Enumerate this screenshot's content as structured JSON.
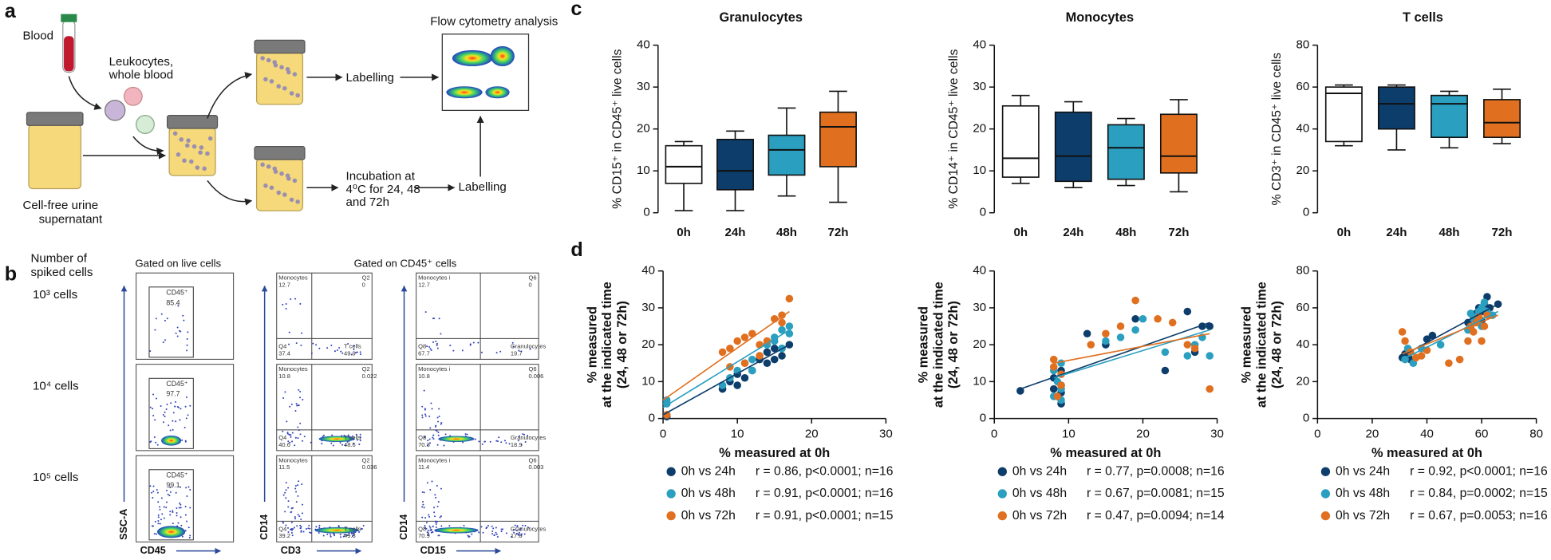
{
  "figure": {
    "labels": [
      "a",
      "b",
      "c",
      "d"
    ],
    "a": {
      "blood": "Blood",
      "leukocytes": [
        "Leukocytes,",
        "whole blood"
      ],
      "urine": [
        "Cell-free urine",
        "supernatant"
      ],
      "labelling_top": "Labelling",
      "incubation": [
        "Incubation at",
        "4⁰C for 24, 48",
        "and 72h"
      ],
      "labelling_bottom": "Labelling",
      "flow": "Flow cytometry analysis"
    },
    "b": {
      "rows_title": [
        "Number of",
        "spiked cells"
      ],
      "rows": [
        "10³ cells",
        "10⁴ cells",
        "10⁵ cells"
      ],
      "col_titles": [
        "Gated on live cells",
        "Gated on CD45⁺ cells"
      ],
      "gates": [
        {
          "name": "CD45⁺",
          "value": "85.4"
        },
        {
          "name": "CD45⁺",
          "value": "97.7"
        },
        {
          "name": "CD45⁺",
          "value": "99.1"
        }
      ],
      "axes": [
        {
          "x": "CD45",
          "y": "SSC-A"
        },
        {
          "x": "CD3",
          "y": "CD14"
        },
        {
          "x": "CD15",
          "y": "CD14"
        }
      ],
      "quadrants": [
        [
          [
            {
              "name": "Monocytes",
              "value": "12.7"
            },
            {
              "name": "Q2",
              "value": "0"
            },
            {
              "name": "Q4",
              "value": "37.4"
            },
            {
              "name": "T cells",
              "value": "49.9"
            }
          ],
          [
            {
              "name": "Monocytes",
              "value": "10.8"
            },
            {
              "name": "Q2",
              "value": "0.022"
            },
            {
              "name": "Q4",
              "value": "40.6"
            },
            {
              "name": "T cells",
              "value": "48.6"
            }
          ],
          [
            {
              "name": "Monocytes",
              "value": "11.5"
            },
            {
              "name": "Q2",
              "value": "0.036"
            },
            {
              "name": "Q4",
              "value": "39.2"
            },
            {
              "name": "T cells",
              "value": "49.3"
            }
          ]
        ],
        [
          [
            {
              "name": "Monocytes i",
              "value": "12.7"
            },
            {
              "name": "Q6",
              "value": "0"
            },
            {
              "name": "Q8",
              "value": "67.7"
            },
            {
              "name": "Granulocytes",
              "value": "19.7"
            }
          ],
          [
            {
              "name": "Monocytes i",
              "value": "10.8"
            },
            {
              "name": "Q6",
              "value": "0.006"
            },
            {
              "name": "Q8",
              "value": "70.3"
            },
            {
              "name": "Granulocytes",
              "value": "18.9"
            }
          ],
          [
            {
              "name": "Monocytes i",
              "value": "11.4"
            },
            {
              "name": "Q6",
              "value": "0.003"
            },
            {
              "name": "Q8",
              "value": "70.9"
            },
            {
              "name": "Granulocytes",
              "value": "17.6"
            }
          ]
        ]
      ]
    }
  },
  "chart_data": [
    {
      "type": "box",
      "title": "Granulocytes",
      "y_label": "% CD15⁺ in CD45⁺ live cells",
      "categories": [
        "0h",
        "24h",
        "48h",
        "72h"
      ],
      "boxes": [
        {
          "min": 0.5,
          "q1": 7,
          "median": 11,
          "q3": 16,
          "max": 17,
          "color": "#ffffff"
        },
        {
          "min": 0.5,
          "q1": 5.5,
          "median": 10,
          "q3": 17.5,
          "max": 19.5,
          "color": "#0d3d6b"
        },
        {
          "min": 4,
          "q1": 9,
          "median": 15,
          "q3": 18.5,
          "max": 25,
          "color": "#2a9fc0"
        },
        {
          "min": 2.5,
          "q1": 11,
          "median": 20.5,
          "q3": 24,
          "max": 29,
          "color": "#e07020"
        }
      ],
      "ylim": [
        0,
        40
      ],
      "yticks": [
        0,
        10,
        20,
        30,
        40
      ]
    },
    {
      "type": "box",
      "title": "Monocytes",
      "y_label": "% CD14⁺ in CD45⁺ live cells",
      "categories": [
        "0h",
        "24h",
        "48h",
        "72h"
      ],
      "boxes": [
        {
          "min": 7,
          "q1": 8.5,
          "median": 13,
          "q3": 25.5,
          "max": 28,
          "color": "#ffffff"
        },
        {
          "min": 6,
          "q1": 7.5,
          "median": 13.5,
          "q3": 24,
          "max": 26.5,
          "color": "#0d3d6b"
        },
        {
          "min": 6.5,
          "q1": 8,
          "median": 15.5,
          "q3": 21,
          "max": 22.5,
          "color": "#2a9fc0"
        },
        {
          "min": 5,
          "q1": 9.5,
          "median": 13.5,
          "q3": 23.5,
          "max": 27,
          "color": "#e07020"
        }
      ],
      "ylim": [
        0,
        40
      ],
      "yticks": [
        0,
        10,
        20,
        30,
        40
      ]
    },
    {
      "type": "box",
      "title": "T cells",
      "y_label": "% CD3⁺ in CD45⁺ live cells",
      "categories": [
        "0h",
        "24h",
        "48h",
        "72h"
      ],
      "boxes": [
        {
          "min": 32,
          "q1": 34,
          "median": 57,
          "q3": 60,
          "max": 61,
          "color": "#ffffff"
        },
        {
          "min": 30,
          "q1": 40,
          "median": 52,
          "q3": 60,
          "max": 61,
          "color": "#0d3d6b"
        },
        {
          "min": 31,
          "q1": 36,
          "median": 52,
          "q3": 56,
          "max": 58,
          "color": "#2a9fc0"
        },
        {
          "min": 33,
          "q1": 36,
          "median": 43,
          "q3": 54,
          "max": 59,
          "color": "#e07020"
        }
      ],
      "ylim": [
        0,
        80
      ],
      "yticks": [
        0,
        20,
        40,
        60,
        80
      ]
    },
    {
      "type": "scatter",
      "x_label": "% measured at 0h",
      "y_label": [
        "% measured",
        "at the indicated time",
        "(24, 48 or 72h)"
      ],
      "xlim": [
        0,
        30
      ],
      "xticks": [
        0,
        10,
        20,
        30
      ],
      "ylim": [
        0,
        40
      ],
      "yticks": [
        0,
        10,
        20,
        30,
        40
      ],
      "series": [
        {
          "name": "0h vs 24h",
          "stats": "r = 0.86, p<0.0001; n=16",
          "color": "#0d3d6b",
          "x": [
            0.5,
            0.5,
            8,
            9,
            10,
            10,
            11,
            12,
            13,
            14,
            14,
            15,
            15,
            16,
            16,
            17
          ],
          "y": [
            1,
            0.5,
            8,
            10,
            9,
            12,
            11,
            13,
            16,
            15,
            18,
            16,
            19,
            17,
            19,
            20
          ],
          "fit": {
            "x": [
              0,
              17
            ],
            "y": [
              1,
              20
            ]
          }
        },
        {
          "name": "0h vs 48h",
          "stats": "r = 0.91, p<0.0001; n=16",
          "color": "#2a9fc0",
          "x": [
            0.5,
            0.5,
            8,
            9,
            10,
            11,
            12,
            13,
            14,
            15,
            15,
            16,
            16,
            17,
            17,
            12
          ],
          "y": [
            5,
            4,
            9,
            11,
            13,
            15,
            16,
            17,
            20,
            22,
            21,
            24,
            19,
            25,
            23,
            13
          ],
          "fit": {
            "x": [
              0,
              17
            ],
            "y": [
              3,
              24
            ]
          }
        },
        {
          "name": "0h vs 72h",
          "stats": "r = 0.91, p<0.0001; n=15",
          "color": "#e07020",
          "x": [
            0.5,
            8,
            9,
            9,
            10,
            11,
            11,
            12,
            13,
            14,
            15,
            16,
            16,
            17,
            13
          ],
          "y": [
            1,
            18,
            19,
            14,
            21,
            22,
            15,
            23,
            17,
            21,
            27,
            28,
            26,
            32.5,
            20
          ],
          "fit": {
            "x": [
              0,
              17
            ],
            "y": [
              5,
              29
            ]
          }
        }
      ]
    },
    {
      "type": "scatter",
      "x_label": "% measured at 0h",
      "y_label": [
        "% measured",
        "at the indicated time",
        "(24, 48 or 72h)"
      ],
      "xlim": [
        0,
        30
      ],
      "xticks": [
        0,
        10,
        20,
        30
      ],
      "ylim": [
        0,
        40
      ],
      "yticks": [
        0,
        10,
        20,
        30,
        40
      ],
      "series": [
        {
          "name": "0h vs 24h",
          "stats": "r = 0.77, p=0.0008; n=16",
          "color": "#0d3d6b",
          "x": [
            3.5,
            8,
            8.5,
            9,
            9,
            9,
            8,
            9,
            12.5,
            15,
            19,
            23,
            26,
            27,
            28,
            29
          ],
          "y": [
            7.5,
            8,
            6,
            4,
            9,
            7,
            11,
            13,
            23,
            20,
            27,
            13,
            29,
            18,
            25,
            25
          ],
          "fit": {
            "x": [
              3.5,
              29
            ],
            "y": [
              8,
              26
            ]
          }
        },
        {
          "name": "0h vs 48h",
          "stats": "r = 0.67, p=0.0081; n=15",
          "color": "#2a9fc0",
          "x": [
            8,
            8.5,
            9,
            9,
            8,
            17,
            19,
            20,
            23,
            26,
            27,
            29,
            28,
            9,
            15
          ],
          "y": [
            13,
            10,
            5,
            8,
            6,
            22,
            24,
            27,
            18,
            17,
            20,
            17,
            22,
            15,
            21
          ],
          "fit": {
            "x": [
              8,
              29
            ],
            "y": [
              11,
              24
            ]
          }
        },
        {
          "name": "0h vs 72h",
          "stats": "r = 0.47, p=0.0094; n=14",
          "color": "#e07020",
          "x": [
            8,
            8,
            9,
            9,
            15,
            17,
            19,
            22,
            26,
            27,
            29,
            8.5,
            13,
            24
          ],
          "y": [
            16,
            14,
            12,
            9,
            23,
            25,
            32,
            27,
            20,
            19,
            8,
            6,
            20,
            26
          ],
          "fit": {
            "x": [
              8,
              29
            ],
            "y": [
              15,
              23
            ]
          }
        }
      ]
    },
    {
      "type": "scatter",
      "x_label": "% measured at 0h",
      "y_label": [
        "% measured",
        "at the indicated time",
        "(24, 48 or 72h)"
      ],
      "xlim": [
        0,
        80
      ],
      "xticks": [
        0,
        20,
        40,
        60,
        80
      ],
      "ylim": [
        0,
        80
      ],
      "yticks": [
        0,
        20,
        40,
        60,
        80
      ],
      "series": [
        {
          "name": "0h vs 24h",
          "stats": "r = 0.92, p<0.0001; n=16",
          "color": "#0d3d6b",
          "x": [
            31,
            32,
            34,
            40,
            42,
            55,
            57,
            58,
            59,
            60,
            61,
            62,
            60,
            63,
            66,
            56
          ],
          "y": [
            33,
            35,
            32,
            43,
            45,
            52,
            55,
            57,
            60,
            58,
            62,
            66,
            53,
            60,
            62,
            49
          ],
          "fit": {
            "x": [
              31,
              66
            ],
            "y": [
              34,
              62
            ]
          }
        },
        {
          "name": "0h vs 48h",
          "stats": "r = 0.84, p=0.0002; n=15",
          "color": "#2a9fc0",
          "x": [
            32,
            35,
            38,
            45,
            55,
            57,
            58,
            59,
            60,
            61,
            62,
            64,
            60,
            33,
            56
          ],
          "y": [
            32,
            30,
            38,
            40,
            48,
            54,
            55,
            58,
            60,
            63,
            58,
            56,
            50,
            38,
            57
          ],
          "fit": {
            "x": [
              31,
              66
            ],
            "y": [
              32,
              58
            ]
          }
        },
        {
          "name": "0h vs 72h",
          "stats": "r = 0.67, p=0.0053; n=16",
          "color": "#e07020",
          "x": [
            31,
            32,
            34,
            36,
            40,
            48,
            52,
            55,
            57,
            58,
            59,
            60,
            61,
            62,
            56,
            38
          ],
          "y": [
            47,
            42,
            36,
            33,
            37,
            30,
            32,
            42,
            47,
            52,
            55,
            42,
            50,
            56,
            50,
            34
          ],
          "fit": {
            "x": [
              31,
              66
            ],
            "y": [
              35,
              56
            ]
          }
        }
      ]
    }
  ]
}
